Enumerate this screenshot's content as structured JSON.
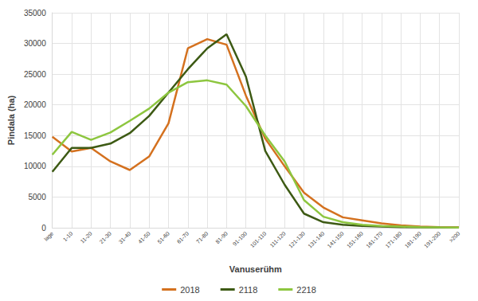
{
  "chart_data": {
    "type": "line",
    "x_label": "Vanuserühm",
    "y_label": "Pindala (ha)",
    "categories": [
      "lage",
      "1-10",
      "11-20",
      "21-30",
      "31-40",
      "41-50",
      "51-60",
      "61-70",
      "71-80",
      "81-90",
      "91-100",
      "101-110",
      "111-120",
      "121-130",
      "131-140",
      "141-150",
      "151-160",
      "161-170",
      "171-180",
      "181-190",
      "191-200",
      ">200"
    ],
    "series": [
      {
        "name": "2018",
        "color": "#d4711f",
        "values": [
          14800,
          12400,
          13000,
          10800,
          9400,
          11600,
          17000,
          29200,
          30700,
          29800,
          21500,
          14500,
          10000,
          5700,
          3300,
          1700,
          1200,
          700,
          400,
          200,
          100,
          50
        ]
      },
      {
        "name": "2118",
        "color": "#3d5a14",
        "values": [
          9100,
          13000,
          13000,
          13700,
          15400,
          18200,
          22000,
          25800,
          29200,
          31500,
          24600,
          12500,
          7000,
          2300,
          900,
          500,
          300,
          200,
          100,
          50,
          20,
          10
        ]
      },
      {
        "name": "2218",
        "color": "#8dc63f",
        "values": [
          11900,
          15600,
          14300,
          15500,
          17400,
          19400,
          22000,
          23700,
          24000,
          23300,
          19800,
          15000,
          10800,
          4500,
          1800,
          900,
          500,
          300,
          200,
          100,
          50,
          20
        ]
      }
    ],
    "ylim": [
      0,
      35000
    ],
    "yticks": [
      0,
      5000,
      10000,
      15000,
      20000,
      25000,
      30000,
      35000
    ],
    "grid": true,
    "legend": "bottom"
  }
}
